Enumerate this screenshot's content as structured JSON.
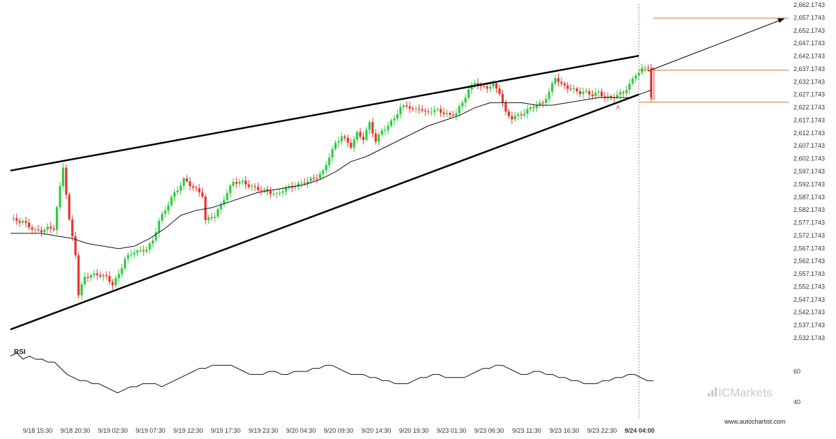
{
  "chart_data": {
    "type": "candlestick",
    "price_axis": {
      "ticks": [
        "2,662.1743",
        "2,657.1743",
        "2,652.1743",
        "2,647.1743",
        "2,642.1743",
        "2,637.1743",
        "2,632.1743",
        "2,627.1743",
        "2,622.1743",
        "2,617.1743",
        "2,612.1743",
        "2,607.1743",
        "2,602.1743",
        "2,597.1743",
        "2,592.1743",
        "2,587.1743",
        "2,582.1743",
        "2,577.1743",
        "2,572.1743",
        "2,567.1743",
        "2,562.1743",
        "2,557.1743",
        "2,552.1743",
        "2,547.1743",
        "2,542.1743",
        "2,537.1743",
        "2,532.1743"
      ],
      "range": [
        2530.0,
        2663.5
      ]
    },
    "time_axis": {
      "labels": [
        "9/18 15:30",
        "9/18 20:30",
        "9/19 02:30",
        "9/19 07:30",
        "9/19 12:30",
        "9/19 17:30",
        "9/19 23:30",
        "9/20 04:30",
        "9/20 09:30",
        "9/20 14:30",
        "9/20 19:30",
        "9/23 01:30",
        "9/23 06:30",
        "9/23 11:30",
        "9/23 16:30",
        "9/23 22:30",
        "9/24 04:00"
      ],
      "highlight": "9/24 04:00"
    },
    "price_path": [
      [
        0,
        2578.5
      ],
      [
        4,
        2577.5
      ],
      [
        8,
        2574
      ],
      [
        10,
        2574
      ],
      [
        12,
        2575
      ],
      [
        14,
        2575
      ],
      [
        17,
        2599
      ],
      [
        19,
        2578
      ],
      [
        21,
        2565
      ],
      [
        22,
        2549
      ],
      [
        24,
        2556
      ],
      [
        28,
        2557
      ],
      [
        31,
        2556
      ],
      [
        33,
        2553
      ],
      [
        35,
        2557
      ],
      [
        37,
        2563
      ],
      [
        40,
        2566
      ],
      [
        42,
        2566
      ],
      [
        44,
        2567
      ],
      [
        46,
        2570
      ],
      [
        48,
        2578
      ],
      [
        50,
        2582
      ],
      [
        52,
        2587
      ],
      [
        54,
        2590
      ],
      [
        56,
        2594
      ],
      [
        58,
        2592
      ],
      [
        60,
        2590
      ],
      [
        62,
        2588
      ],
      [
        63,
        2578
      ],
      [
        66,
        2580
      ],
      [
        68,
        2584
      ],
      [
        70,
        2589
      ],
      [
        72,
        2593
      ],
      [
        75,
        2593
      ],
      [
        78,
        2591
      ],
      [
        81,
        2590
      ],
      [
        84,
        2589
      ],
      [
        86,
        2588
      ],
      [
        88,
        2590
      ],
      [
        90,
        2591
      ],
      [
        93,
        2592
      ],
      [
        95,
        2593
      ],
      [
        97,
        2594
      ],
      [
        99,
        2595
      ],
      [
        101,
        2597
      ],
      [
        103,
        2603
      ],
      [
        105,
        2608
      ],
      [
        107,
        2611
      ],
      [
        110,
        2607
      ],
      [
        112,
        2612
      ],
      [
        114,
        2610
      ],
      [
        116,
        2616
      ],
      [
        118,
        2609
      ],
      [
        120,
        2613
      ],
      [
        122,
        2615
      ],
      [
        124,
        2618
      ],
      [
        126,
        2622
      ],
      [
        128,
        2623
      ],
      [
        130,
        2621
      ],
      [
        132,
        2622
      ],
      [
        134,
        2620
      ],
      [
        136,
        2621
      ],
      [
        138,
        2621
      ],
      [
        140,
        2620
      ],
      [
        142,
        2619
      ],
      [
        144,
        2620
      ],
      [
        146,
        2624
      ],
      [
        148,
        2629
      ],
      [
        150,
        2632
      ],
      [
        152,
        2630
      ],
      [
        154,
        2630
      ],
      [
        156,
        2631
      ],
      [
        158,
        2628
      ],
      [
        160,
        2620
      ],
      [
        162,
        2618
      ],
      [
        164,
        2619
      ],
      [
        166,
        2620
      ],
      [
        168,
        2622
      ],
      [
        170,
        2623
      ],
      [
        172,
        2624
      ],
      [
        174,
        2628
      ],
      [
        176,
        2634
      ],
      [
        178,
        2631
      ],
      [
        180,
        2630
      ],
      [
        182,
        2629
      ],
      [
        184,
        2628
      ],
      [
        186,
        2628
      ],
      [
        188,
        2627
      ],
      [
        190,
        2628
      ],
      [
        192,
        2626
      ],
      [
        194,
        2626
      ],
      [
        196,
        2627
      ],
      [
        198,
        2628
      ],
      [
        200,
        2631
      ],
      [
        202,
        2635
      ],
      [
        204,
        2637
      ],
      [
        206,
        2638
      ],
      [
        207,
        2626
      ]
    ],
    "sma_path": [
      [
        0,
        2573
      ],
      [
        5,
        2573
      ],
      [
        10,
        2573
      ],
      [
        15,
        2572
      ],
      [
        20,
        2571
      ],
      [
        25,
        2569
      ],
      [
        30,
        2568
      ],
      [
        35,
        2567
      ],
      [
        40,
        2568
      ],
      [
        45,
        2571
      ],
      [
        50,
        2575
      ],
      [
        55,
        2580
      ],
      [
        60,
        2582
      ],
      [
        65,
        2583
      ],
      [
        70,
        2585
      ],
      [
        75,
        2587
      ],
      [
        80,
        2589
      ],
      [
        85,
        2590
      ],
      [
        90,
        2591
      ],
      [
        95,
        2592
      ],
      [
        100,
        2594
      ],
      [
        105,
        2597
      ],
      [
        110,
        2601
      ],
      [
        115,
        2603
      ],
      [
        120,
        2606
      ],
      [
        125,
        2609
      ],
      [
        130,
        2612
      ],
      [
        135,
        2615
      ],
      [
        140,
        2617
      ],
      [
        145,
        2619
      ],
      [
        150,
        2622
      ],
      [
        155,
        2624
      ],
      [
        160,
        2624
      ],
      [
        165,
        2624
      ],
      [
        170,
        2623
      ],
      [
        175,
        2623
      ],
      [
        180,
        2624
      ],
      [
        185,
        2625
      ],
      [
        190,
        2626
      ],
      [
        195,
        2626
      ],
      [
        200,
        2626
      ],
      [
        205,
        2628
      ],
      [
        207,
        2629
      ]
    ],
    "pattern": {
      "name": "Rising Wedge",
      "resistance": [
        [
          0,
          2597.5
        ],
        [
          203,
          2642.3
        ]
      ],
      "support": [
        [
          0,
          2535.5
        ],
        [
          203,
          2627.2
        ]
      ],
      "projection": [
        [
          206,
          2636.3
        ],
        [
          250,
          2656.8
        ]
      ],
      "target_level": 2657.0,
      "breakout_level": 2636.7,
      "stop_level": 2624.2,
      "marker": "A"
    },
    "rsi": {
      "label": "RSI",
      "levels": [
        "60",
        "40"
      ],
      "range": [
        33,
        78
      ],
      "values": [
        70,
        72,
        68,
        70,
        68,
        68,
        66,
        66,
        62,
        58,
        56,
        54,
        54,
        52,
        52,
        50,
        48,
        46,
        48,
        50,
        50,
        52,
        52,
        52,
        50,
        52,
        54,
        56,
        58,
        60,
        62,
        62,
        64,
        64,
        64,
        64,
        62,
        60,
        58,
        58,
        58,
        60,
        60,
        58,
        58,
        60,
        60,
        60,
        62,
        62,
        64,
        64,
        62,
        60,
        58,
        58,
        58,
        56,
        56,
        54,
        54,
        52,
        52,
        52,
        54,
        56,
        56,
        58,
        58,
        56,
        56,
        56,
        56,
        58,
        60,
        62,
        62,
        64,
        64,
        62,
        60,
        58,
        58,
        60,
        60,
        58,
        58,
        56,
        56,
        54,
        54,
        52,
        52,
        52,
        54,
        54,
        56,
        56,
        58,
        58,
        56,
        54,
        54
      ]
    }
  },
  "branding": {
    "logo_text": "ICMarkets",
    "url": "www.autochartist.com"
  },
  "colors": {
    "bull": "#2ecc40",
    "bear": "#e8322b",
    "line": "#000000",
    "level": "#e07030"
  }
}
